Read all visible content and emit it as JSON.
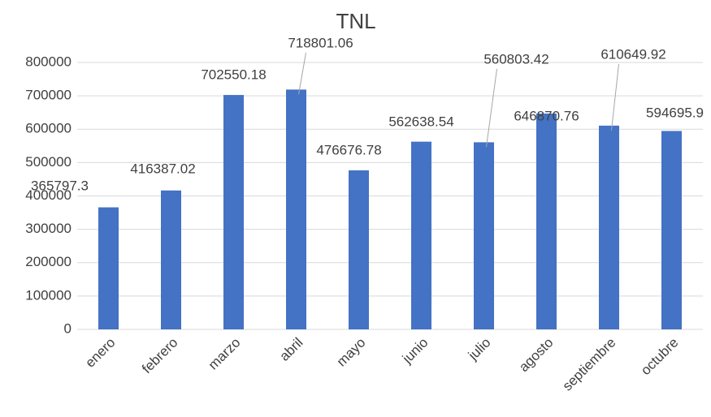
{
  "chart_data": {
    "type": "bar",
    "title": "TNL",
    "categories": [
      "enero",
      "febrero",
      "marzo",
      "abril",
      "mayo",
      "junio",
      "julio",
      "agosto",
      "septiembre",
      "octubre"
    ],
    "values": [
      365797.3,
      416387.02,
      702550.18,
      718801.06,
      476676.78,
      562638.54,
      560803.42,
      646870.76,
      610649.92,
      594695.9
    ],
    "color": "#4472c4",
    "ylim": [
      0,
      800000
    ],
    "yticks": [
      0,
      100000,
      200000,
      300000,
      400000,
      500000,
      600000,
      700000,
      800000
    ],
    "grid": true
  }
}
